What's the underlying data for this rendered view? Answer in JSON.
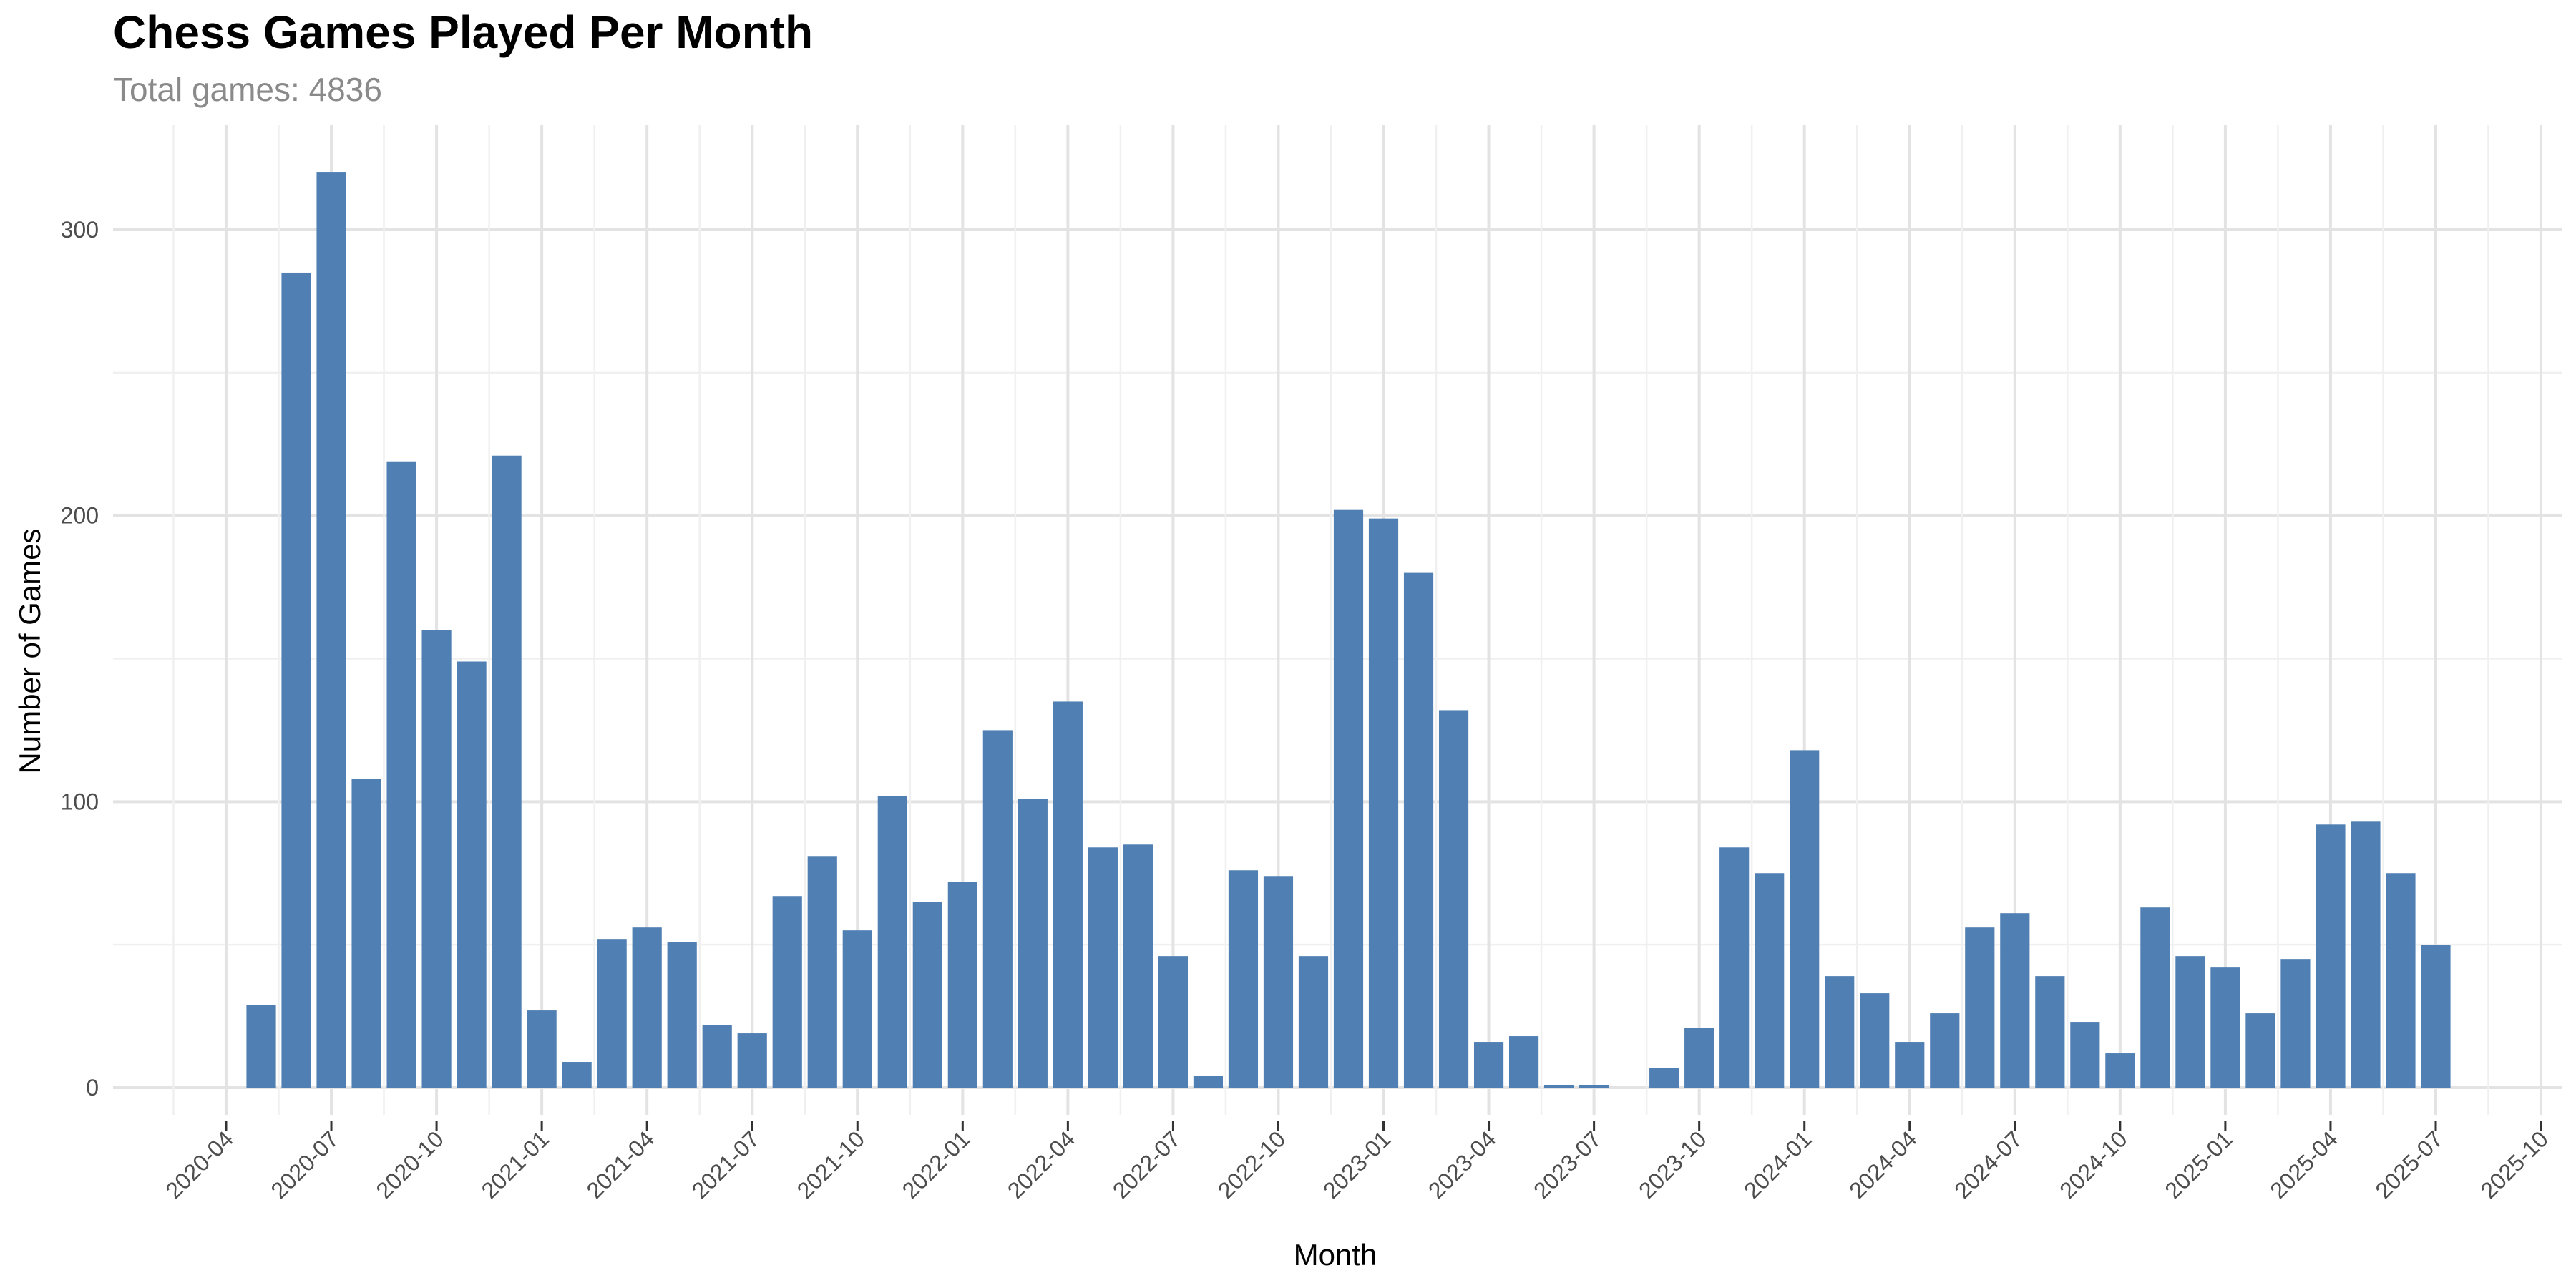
{
  "chart_data": {
    "type": "bar",
    "title": "Chess Games Played Per Month",
    "subtitle": "Total games: 4836",
    "xlabel": "Month",
    "ylabel": "Number of Games",
    "ylim": [
      -10,
      320
    ],
    "y_ticks": [
      0,
      100,
      200,
      300
    ],
    "x_tick_labels": [
      "2020-04",
      "2020-07",
      "2020-10",
      "2021-01",
      "2021-04",
      "2021-07",
      "2021-10",
      "2022-01",
      "2022-04",
      "2022-07",
      "2022-10",
      "2023-01",
      "2023-04",
      "2023-07",
      "2023-10",
      "2024-01",
      "2024-04",
      "2024-07",
      "2024-10",
      "2025-01",
      "2025-04",
      "2025-07",
      "2025-10"
    ],
    "grid": true,
    "bar_color": "#4f7fb3",
    "categories": [
      "2020-05",
      "2020-06",
      "2020-07",
      "2020-08",
      "2020-09",
      "2020-10",
      "2020-11",
      "2020-12",
      "2021-01",
      "2021-02",
      "2021-03",
      "2021-04",
      "2021-05",
      "2021-06",
      "2021-07",
      "2021-08",
      "2021-09",
      "2021-10",
      "2021-11",
      "2021-12",
      "2022-01",
      "2022-02",
      "2022-03",
      "2022-04",
      "2022-05",
      "2022-06",
      "2022-07",
      "2022-08",
      "2022-09",
      "2022-10",
      "2022-11",
      "2022-12",
      "2023-01",
      "2023-02",
      "2023-03",
      "2023-04",
      "2023-05",
      "2023-06",
      "2023-07",
      "2023-08",
      "2023-09",
      "2023-10",
      "2023-11",
      "2023-12",
      "2024-01",
      "2024-02",
      "2024-03",
      "2024-04",
      "2024-05",
      "2024-06",
      "2024-07",
      "2024-08",
      "2024-09",
      "2024-10",
      "2024-11",
      "2024-12",
      "2025-01",
      "2025-02",
      "2025-03",
      "2025-04",
      "2025-05",
      "2025-06",
      "2025-07"
    ],
    "values": [
      29,
      285,
      320,
      108,
      219,
      160,
      149,
      221,
      27,
      9,
      52,
      56,
      51,
      22,
      19,
      67,
      81,
      55,
      102,
      65,
      72,
      125,
      101,
      135,
      84,
      85,
      46,
      4,
      76,
      74,
      46,
      202,
      199,
      180,
      132,
      16,
      18,
      1,
      1,
      0,
      7,
      21,
      84,
      75,
      118,
      39,
      33,
      16,
      26,
      56,
      61,
      39,
      23,
      12,
      63,
      46,
      42,
      26,
      45,
      92,
      93,
      75,
      50
    ]
  }
}
